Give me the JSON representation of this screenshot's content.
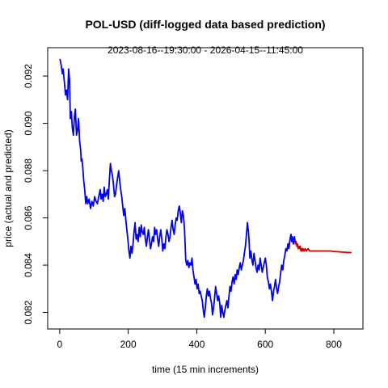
{
  "chart_data": {
    "type": "line",
    "title": "POL-USD (diff-logged data based prediction)",
    "subtitle": "2023-08-16--19:30:00  -  2026-04-15--11:45:00",
    "xlabel": "time (15 min increments)",
    "ylabel": "price (actual and predicted)",
    "xlim": [
      -35,
      885
    ],
    "ylim": [
      0.0813,
      0.0932
    ],
    "x_ticks": [
      0,
      200,
      400,
      600,
      800
    ],
    "x_tick_labels": [
      "0",
      "200",
      "400",
      "600",
      "800"
    ],
    "y_ticks": [
      0.082,
      0.084,
      0.086,
      0.088,
      0.09,
      0.092
    ],
    "y_tick_labels": [
      "0.082",
      "0.084",
      "0.086",
      "0.088",
      "0.090",
      "0.092"
    ],
    "grid": false,
    "legend": "none",
    "colors": {
      "actual": "#0000ee",
      "predicted": "#cd0000"
    },
    "series": [
      {
        "points": [
          [
            1,
            0.0927
          ],
          [
            4,
            0.0925
          ],
          [
            8,
            0.0921
          ],
          [
            10,
            0.0923
          ],
          [
            14,
            0.0917
          ],
          [
            17,
            0.0912
          ],
          [
            20,
            0.0914
          ],
          [
            23,
            0.091
          ],
          [
            26,
            0.0923
          ],
          [
            29,
            0.0918
          ],
          [
            31,
            0.0902
          ],
          [
            34,
            0.0905
          ],
          [
            37,
            0.0898
          ],
          [
            40,
            0.0895
          ],
          [
            43,
            0.0903
          ],
          [
            46,
            0.0906
          ],
          [
            49,
            0.0895
          ],
          [
            52,
            0.0897
          ],
          [
            55,
            0.0902
          ],
          [
            58,
            0.0893
          ],
          [
            61,
            0.0889
          ],
          [
            63,
            0.0884
          ],
          [
            65,
            0.0885
          ],
          [
            68,
            0.088
          ],
          [
            70,
            0.0876
          ],
          [
            73,
            0.0872
          ],
          [
            76,
            0.0866
          ],
          [
            79,
            0.0869
          ],
          [
            82,
            0.0866
          ],
          [
            86,
            0.0868
          ],
          [
            90,
            0.0864
          ],
          [
            94,
            0.0867
          ],
          [
            98,
            0.0865
          ],
          [
            102,
            0.0869
          ],
          [
            106,
            0.0867
          ],
          [
            110,
            0.0866
          ],
          [
            114,
            0.0869
          ],
          [
            118,
            0.0872
          ],
          [
            121,
            0.0868
          ],
          [
            124,
            0.087
          ],
          [
            127,
            0.0867
          ],
          [
            130,
            0.0873
          ],
          [
            133,
            0.0869
          ],
          [
            136,
            0.087
          ],
          [
            139,
            0.0872
          ],
          [
            142,
            0.0868
          ],
          [
            145,
            0.0876
          ],
          [
            148,
            0.0883
          ],
          [
            151,
            0.088
          ],
          [
            154,
            0.0878
          ],
          [
            157,
            0.0874
          ],
          [
            160,
            0.0869
          ],
          [
            163,
            0.087
          ],
          [
            166,
            0.0874
          ],
          [
            169,
            0.0877
          ],
          [
            172,
            0.088
          ],
          [
            175,
            0.0876
          ],
          [
            178,
            0.0872
          ],
          [
            181,
            0.0869
          ],
          [
            184,
            0.0865
          ],
          [
            187,
            0.0861
          ],
          [
            190,
            0.0864
          ],
          [
            193,
            0.0859
          ],
          [
            196,
            0.0855
          ],
          [
            199,
            0.0851
          ],
          [
            202,
            0.0846
          ],
          [
            205,
            0.0843
          ],
          [
            208,
            0.0848
          ],
          [
            211,
            0.0845
          ],
          [
            214,
            0.0849
          ],
          [
            217,
            0.0854
          ],
          [
            220,
            0.0858
          ],
          [
            223,
            0.0851
          ],
          [
            226,
            0.0853
          ],
          [
            229,
            0.085
          ],
          [
            232,
            0.0856
          ],
          [
            235,
            0.0852
          ],
          [
            238,
            0.0857
          ],
          [
            241,
            0.0854
          ],
          [
            244,
            0.0853
          ],
          [
            247,
            0.0856
          ],
          [
            250,
            0.0851
          ],
          [
            253,
            0.0848
          ],
          [
            256,
            0.0852
          ],
          [
            259,
            0.0855
          ],
          [
            262,
            0.0851
          ],
          [
            265,
            0.0847
          ],
          [
            268,
            0.0849
          ],
          [
            271,
            0.0852
          ],
          [
            274,
            0.085
          ],
          [
            277,
            0.0856
          ],
          [
            280,
            0.0853
          ],
          [
            283,
            0.0855
          ],
          [
            286,
            0.0851
          ],
          [
            289,
            0.0848
          ],
          [
            292,
            0.0852
          ],
          [
            295,
            0.0855
          ],
          [
            298,
            0.0851
          ],
          [
            301,
            0.0846
          ],
          [
            304,
            0.0849
          ],
          [
            307,
            0.0847
          ],
          [
            310,
            0.0852
          ],
          [
            313,
            0.0855
          ],
          [
            316,
            0.0853
          ],
          [
            319,
            0.085
          ],
          [
            322,
            0.0852
          ],
          [
            325,
            0.0856
          ],
          [
            328,
            0.0859
          ],
          [
            331,
            0.0855
          ],
          [
            334,
            0.0853
          ],
          [
            337,
            0.0857
          ],
          [
            340,
            0.086
          ],
          [
            343,
            0.0859
          ],
          [
            346,
            0.0863
          ],
          [
            349,
            0.0865
          ],
          [
            352,
            0.0862
          ],
          [
            355,
            0.0858
          ],
          [
            358,
            0.0863
          ],
          [
            361,
            0.0861
          ],
          [
            364,
            0.0856
          ],
          [
            366,
            0.0849
          ],
          [
            368,
            0.0842
          ],
          [
            371,
            0.084
          ],
          [
            374,
            0.0842
          ],
          [
            377,
            0.0839
          ],
          [
            380,
            0.0841
          ],
          [
            383,
            0.084
          ],
          [
            386,
            0.0843
          ],
          [
            389,
            0.0838
          ],
          [
            392,
            0.0835
          ],
          [
            395,
            0.0832
          ],
          [
            398,
            0.0834
          ],
          [
            401,
            0.083
          ],
          [
            404,
            0.0832
          ],
          [
            407,
            0.0828
          ],
          [
            410,
            0.0829
          ],
          [
            413,
            0.0827
          ],
          [
            416,
            0.0825
          ],
          [
            419,
            0.0821
          ],
          [
            422,
            0.0818
          ],
          [
            425,
            0.0822
          ],
          [
            428,
            0.0827
          ],
          [
            431,
            0.083
          ],
          [
            434,
            0.0827
          ],
          [
            437,
            0.0829
          ],
          [
            440,
            0.0826
          ],
          [
            443,
            0.0824
          ],
          [
            446,
            0.0819
          ],
          [
            449,
            0.0822
          ],
          [
            452,
            0.0826
          ],
          [
            455,
            0.0831
          ],
          [
            458,
            0.0828
          ],
          [
            461,
            0.0825
          ],
          [
            464,
            0.0827
          ],
          [
            467,
            0.0824
          ],
          [
            470,
            0.0818
          ],
          [
            473,
            0.0823
          ],
          [
            476,
            0.082
          ],
          [
            479,
            0.0818
          ],
          [
            482,
            0.0821
          ],
          [
            485,
            0.0823
          ],
          [
            488,
            0.0825
          ],
          [
            491,
            0.0822
          ],
          [
            494,
            0.0827
          ],
          [
            497,
            0.0831
          ],
          [
            500,
            0.0829
          ],
          [
            503,
            0.0833
          ],
          [
            506,
            0.0835
          ],
          [
            509,
            0.0832
          ],
          [
            512,
            0.0836
          ],
          [
            515,
            0.0834
          ],
          [
            518,
            0.0838
          ],
          [
            521,
            0.0836
          ],
          [
            524,
            0.0839
          ],
          [
            527,
            0.0841
          ],
          [
            530,
            0.0838
          ],
          [
            533,
            0.084
          ],
          [
            536,
            0.0842
          ],
          [
            539,
            0.0845
          ],
          [
            542,
            0.0848
          ],
          [
            545,
            0.0853
          ],
          [
            548,
            0.0858
          ],
          [
            551,
            0.0854
          ],
          [
            553,
            0.0849
          ],
          [
            555,
            0.0843
          ],
          [
            558,
            0.0846
          ],
          [
            561,
            0.0842
          ],
          [
            564,
            0.084
          ],
          [
            567,
            0.0845
          ],
          [
            570,
            0.0842
          ],
          [
            573,
            0.0839
          ],
          [
            576,
            0.0837
          ],
          [
            579,
            0.084
          ],
          [
            582,
            0.0838
          ],
          [
            585,
            0.0843
          ],
          [
            588,
            0.084
          ],
          [
            591,
            0.0837
          ],
          [
            594,
            0.0839
          ],
          [
            597,
            0.0841
          ],
          [
            600,
            0.0843
          ],
          [
            603,
            0.084
          ],
          [
            606,
            0.0835
          ],
          [
            609,
            0.0833
          ],
          [
            612,
            0.083
          ],
          [
            615,
            0.0832
          ],
          [
            618,
            0.0829
          ],
          [
            621,
            0.0825
          ],
          [
            624,
            0.0829
          ],
          [
            627,
            0.0831
          ],
          [
            630,
            0.0834
          ],
          [
            633,
            0.083
          ],
          [
            636,
            0.0828
          ],
          [
            639,
            0.0831
          ],
          [
            642,
            0.0833
          ],
          [
            645,
            0.0837
          ],
          [
            648,
            0.084
          ],
          [
            651,
            0.0838
          ],
          [
            654,
            0.0842
          ],
          [
            657,
            0.0844
          ],
          [
            660,
            0.0847
          ],
          [
            663,
            0.0846
          ],
          [
            666,
            0.0849
          ],
          [
            669,
            0.0847
          ],
          [
            672,
            0.0851
          ],
          [
            675,
            0.0853
          ],
          [
            677,
            0.085
          ],
          [
            679,
            0.0852
          ],
          [
            682,
            0.0849
          ],
          [
            685,
            0.0852
          ],
          [
            688,
            0.0849
          ]
        ]
      },
      {
        "points": [
          [
            688,
            0.0849
          ],
          [
            690,
            0.085
          ],
          [
            692,
            0.0848
          ],
          [
            694,
            0.0849
          ],
          [
            696,
            0.0847
          ],
          [
            698,
            0.0848
          ],
          [
            700,
            0.0847
          ],
          [
            702,
            0.0848
          ],
          [
            704,
            0.0846
          ],
          [
            706,
            0.0847
          ],
          [
            708,
            0.0846
          ],
          [
            710,
            0.0847
          ],
          [
            713,
            0.0846
          ],
          [
            716,
            0.0847
          ],
          [
            720,
            0.0846
          ],
          [
            725,
            0.0847
          ],
          [
            730,
            0.0846
          ],
          [
            740,
            0.0846
          ],
          [
            750,
            0.0846
          ],
          [
            760,
            0.0846
          ],
          [
            770,
            0.0846
          ],
          [
            780,
            0.0846
          ],
          [
            790,
            0.0846
          ],
          [
            800,
            0.08458
          ],
          [
            810,
            0.08457
          ],
          [
            820,
            0.08456
          ],
          [
            830,
            0.08455
          ],
          [
            840,
            0.08454
          ],
          [
            850,
            0.08453
          ]
        ]
      }
    ]
  }
}
